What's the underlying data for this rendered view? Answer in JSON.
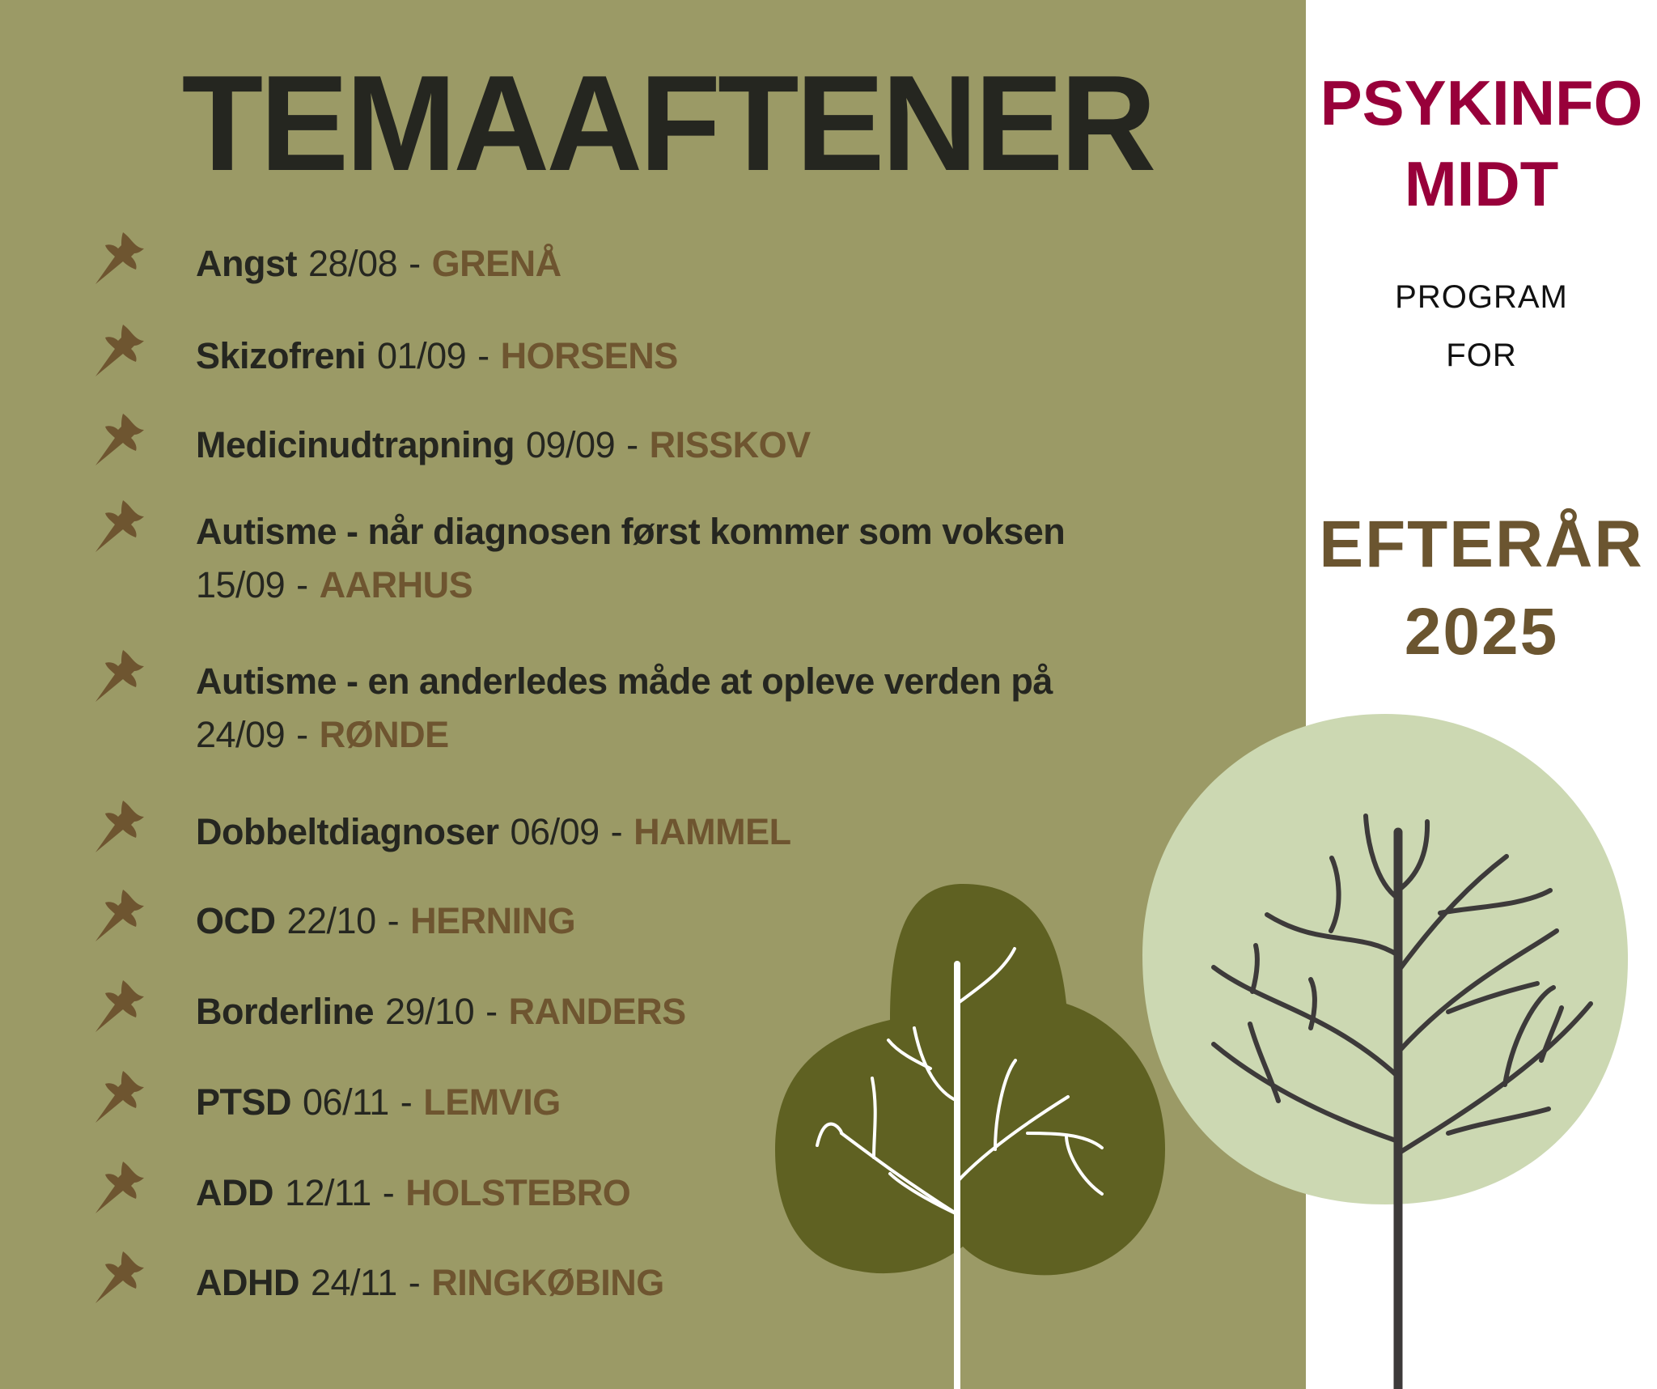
{
  "title": "TEMAAFTENER",
  "colors": {
    "panel": "#9b9a66",
    "text": "#252620",
    "location": "#6e5530",
    "brand": "#98003a",
    "season": "#6b5530"
  },
  "events": [
    {
      "topic": "Angst",
      "date": "28/08",
      "location": "GRENÅ",
      "icon": "pushpin-icon"
    },
    {
      "topic": "Skizofreni",
      "date": "01/09",
      "location": "HORSENS",
      "icon": "pushpin-icon"
    },
    {
      "topic": "Medicinudtrapning",
      "date": "09/09",
      "location": "RISSKOV",
      "icon": "pushpin-icon"
    },
    {
      "topic": "Autisme - når diagnosen først kommer som voksen",
      "date": "15/09",
      "location": "AARHUS",
      "icon": "pushpin-icon"
    },
    {
      "topic": "Autisme - en anderledes måde at opleve verden på",
      "date": "24/09",
      "location": "RØNDE",
      "icon": "pushpin-icon"
    },
    {
      "topic": "Dobbeltdiagnoser",
      "date": "06/09",
      "location": "HAMMEL",
      "icon": "pushpin-icon"
    },
    {
      "topic": "OCD",
      "date": "22/10",
      "location": "HERNING",
      "icon": "pushpin-icon"
    },
    {
      "topic": "Borderline",
      "date": "29/10",
      "location": "RANDERS",
      "icon": "pushpin-icon"
    },
    {
      "topic": "PTSD",
      "date": "06/11",
      "location": "LEMVIG",
      "icon": "pushpin-icon"
    },
    {
      "topic": "ADD",
      "date": "12/11",
      "location": "HOLSTEBRO",
      "icon": "pushpin-icon"
    },
    {
      "topic": "ADHD",
      "date": "24/11",
      "location": "RINGKØBING",
      "icon": "pushpin-icon"
    }
  ],
  "sidebar": {
    "brand_line1": "PSYKINFO",
    "brand_line2": "MIDT",
    "program_line1": "PROGRAM",
    "program_line2": "FOR",
    "season_line1": "EFTERÅR",
    "season_line2": "2025"
  }
}
